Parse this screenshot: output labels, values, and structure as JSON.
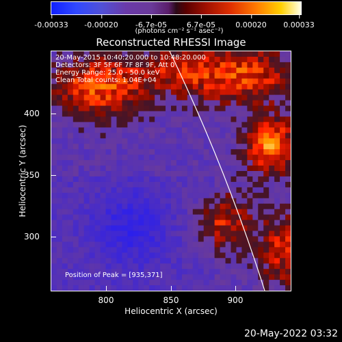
{
  "colorbar": {
    "ticks": [
      "-0.00033",
      "-0.00020",
      "-6.7e-05",
      "6.7e-05",
      "0.00020",
      "0.00033"
    ],
    "units": "(photons cm⁻² s⁻¹ asec⁻²)",
    "range": [
      -0.00033,
      0.00033
    ]
  },
  "plot": {
    "title": "Reconstructed RHESSI Image",
    "info_lines": [
      "20-May-2015 10:40:20.000 to 10:48:20.000",
      "Detectors: 3F 5F 6F 7F 8F 9F, Att 0",
      "Energy Range: 25.0 - 50.0 keV",
      "Clean    Total counts: 1.04E+04"
    ],
    "peak_label": "Position of Peak = [935,371]"
  },
  "axes": {
    "xlabel": "Heliocentric X (arcsec)",
    "ylabel": "Heliocentric Y (arcsec)",
    "xticks": [
      "800",
      "850",
      "900"
    ],
    "yticks": [
      "300",
      "350",
      "400"
    ],
    "xlim": [
      757,
      945
    ],
    "ylim": [
      255,
      443
    ]
  },
  "footer": {
    "timestamp": "20-May-2022 03:32"
  },
  "colors": {
    "background": "#000000",
    "text": "#ffffff"
  }
}
